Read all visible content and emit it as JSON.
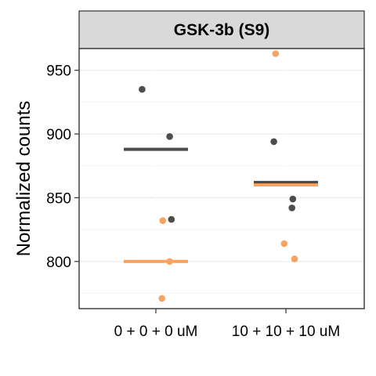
{
  "chart_data": {
    "type": "scatter",
    "title": "GSK-3b (S9)",
    "xlabel": "",
    "ylabel": "Normalized counts",
    "categories": [
      "0 + 0 + 0 uM",
      "10 + 10 + 10 uM"
    ],
    "ylim": [
      763,
      967
    ],
    "yticks": [
      800,
      850,
      900,
      950
    ],
    "grid": true,
    "legend": "none",
    "series": [
      {
        "color": "#4d4d4d",
        "points": [
          {
            "category": 0,
            "jitter": -0.16,
            "y": 935
          },
          {
            "category": 0,
            "jitter": 0.16,
            "y": 898
          },
          {
            "category": 0,
            "jitter": 0.18,
            "y": 833
          },
          {
            "category": 1,
            "jitter": -0.14,
            "y": 894
          },
          {
            "category": 1,
            "jitter": 0.08,
            "y": 849
          },
          {
            "category": 1,
            "jitter": 0.07,
            "y": 842
          }
        ],
        "mean": 888
      },
      {
        "color": "#f7a462",
        "points": [
          {
            "category": 0,
            "jitter": 0.08,
            "y": 832
          },
          {
            "category": 0,
            "jitter": 0.16,
            "y": 800
          },
          {
            "category": 0,
            "jitter": 0.07,
            "y": 771
          },
          {
            "category": 1,
            "jitter": -0.12,
            "y": 963
          },
          {
            "category": 1,
            "jitter": -0.02,
            "y": 814
          },
          {
            "category": 1,
            "jitter": 0.1,
            "y": 802
          }
        ],
        "mean": 800
      }
    ],
    "means": [
      {
        "category": 0,
        "color": "#4d4d4d",
        "y": 888
      },
      {
        "category": 0,
        "color": "#f7a462",
        "y": 800
      },
      {
        "category": 1,
        "color": "#4d4d4d",
        "y": 862
      },
      {
        "category": 1,
        "color": "#f7a462",
        "y": 860
      }
    ]
  }
}
